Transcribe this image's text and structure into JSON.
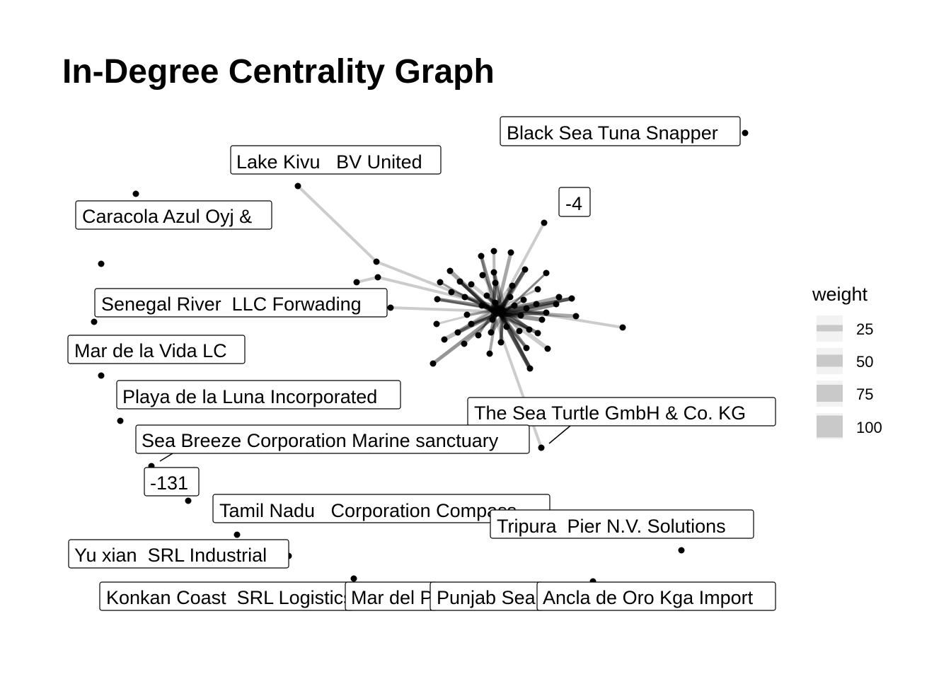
{
  "title": "In-Degree Centrality Graph",
  "legend": {
    "title": "weight",
    "items": [
      "25",
      "50",
      "75",
      "100"
    ],
    "color": "#c9c9c9"
  },
  "labels": [
    "Black Sea Tuna Snapper",
    "Lake Kivu   BV United",
    "-4",
    "Caracola Azul Oyj &",
    "Senegal River  LLC Forwading",
    "Mar de la Vida LC",
    "Playa de la Luna Incorporated",
    "The Sea Turtle GmbH & Co. KG",
    "Sea Breeze Corporation Marine sanctuary",
    "-131",
    "Tamil Nadu   Corporation Compass",
    "Tripura  Pier N.V. Solutions",
    "Yu xian  SRL Industrial",
    "Konkan Coast  SRL Logistics",
    "Mar del Plata",
    "Punjab Sea",
    "Ancla de Oro Kga Import"
  ],
  "colors": {
    "edge": "#000000",
    "node": "#000000",
    "label_border": "#000000"
  }
}
